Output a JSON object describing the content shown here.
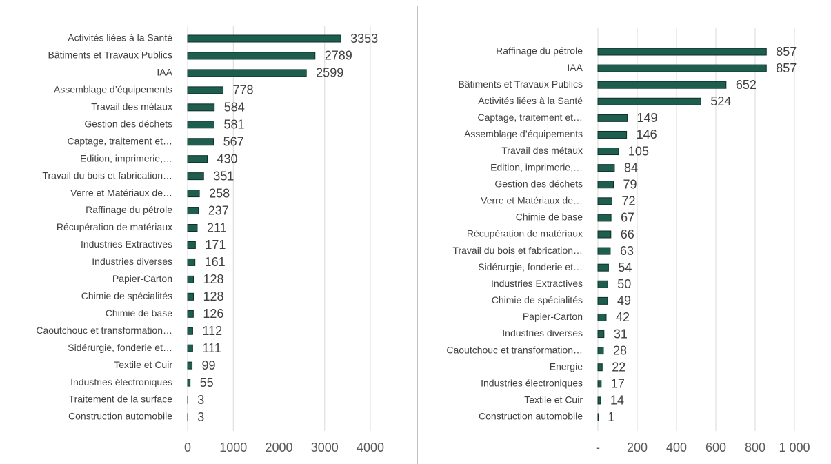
{
  "chart_data": [
    {
      "type": "bar",
      "orientation": "horizontal",
      "color": "#1d5e4e",
      "grid": true,
      "categories": [
        "Activités liées à la Santé",
        "Bâtiments et Travaux Publics",
        "IAA",
        "Assemblage d’équipements",
        "Travail des métaux",
        "Gestion des déchets",
        "Captage, traitement et…",
        "Edition, imprimerie,…",
        "Travail du bois et fabrication…",
        "Verre et Matériaux de…",
        "Raffinage du pétrole",
        "Récupération de matériaux",
        "Industries Extractives",
        "Industries diverses",
        "Papier-Carton",
        "Chimie de spécialités",
        "Chimie de base",
        "Caoutchouc et transformation…",
        "Sidérurgie, fonderie et…",
        "Textile et Cuir",
        "Industries électroniques",
        "Traitement de la surface",
        "Construction automobile"
      ],
      "values": [
        3353,
        2789,
        2599,
        778,
        584,
        581,
        567,
        430,
        351,
        258,
        237,
        211,
        171,
        161,
        128,
        128,
        126,
        112,
        111,
        99,
        55,
        3,
        3
      ],
      "xlim": [
        0,
        4000
      ],
      "xticks": [
        0,
        1000,
        2000,
        3000,
        4000
      ]
    },
    {
      "type": "bar",
      "orientation": "horizontal",
      "color": "#1d5e4e",
      "grid": true,
      "categories": [
        "Raffinage du pétrole",
        "IAA",
        "Bâtiments et Travaux Publics",
        "Activités liées à la Santé",
        "Captage, traitement et…",
        "Assemblage d’équipements",
        "Travail des métaux",
        "Edition, imprimerie,…",
        "Gestion des déchets",
        "Verre et Matériaux de…",
        "Chimie de base",
        "Récupération de matériaux",
        "Travail du bois et fabrication…",
        "Sidérurgie, fonderie et…",
        "Industries Extractives",
        "Chimie de spécialités",
        "Papier-Carton",
        "Industries diverses",
        "Caoutchouc et transformation…",
        "Energie",
        "Industries électroniques",
        "Textile et Cuir",
        "Construction automobile"
      ],
      "values": [
        857,
        857,
        652,
        524,
        149,
        146,
        105,
        84,
        79,
        72,
        67,
        66,
        63,
        54,
        50,
        49,
        42,
        31,
        28,
        22,
        17,
        14,
        1
      ],
      "xlim": [
        0,
        1000
      ],
      "xticks": [
        {
          "value": 0,
          "label": "-"
        },
        200,
        400,
        600,
        800,
        {
          "value": 1000,
          "label": "1 000"
        }
      ]
    }
  ]
}
